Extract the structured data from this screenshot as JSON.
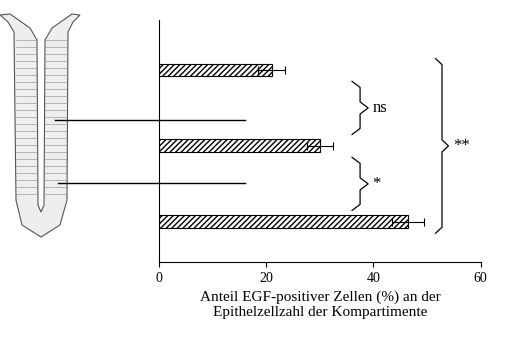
{
  "chart_data": {
    "type": "bar",
    "orientation": "horizontal",
    "categories": [
      null,
      null,
      null
    ],
    "values": [
      21,
      30,
      46.5
    ],
    "errors": [
      2.5,
      2.5,
      3
    ],
    "color": "#000000",
    "xlabel": "Anteil EGF-positiver Zellen (%) an der\nEpithelzellzahl der Kompartimente",
    "xlim": [
      0,
      60
    ],
    "xticks": [
      0,
      20,
      40,
      60
    ],
    "tick_labels": "x",
    "annotations": [
      {
        "text": "ns",
        "between": [
          0,
          1
        ]
      },
      {
        "text": "*",
        "between": [
          1,
          2
        ]
      },
      {
        "text": "**",
        "between": [
          0,
          2
        ]
      }
    ]
  }
}
